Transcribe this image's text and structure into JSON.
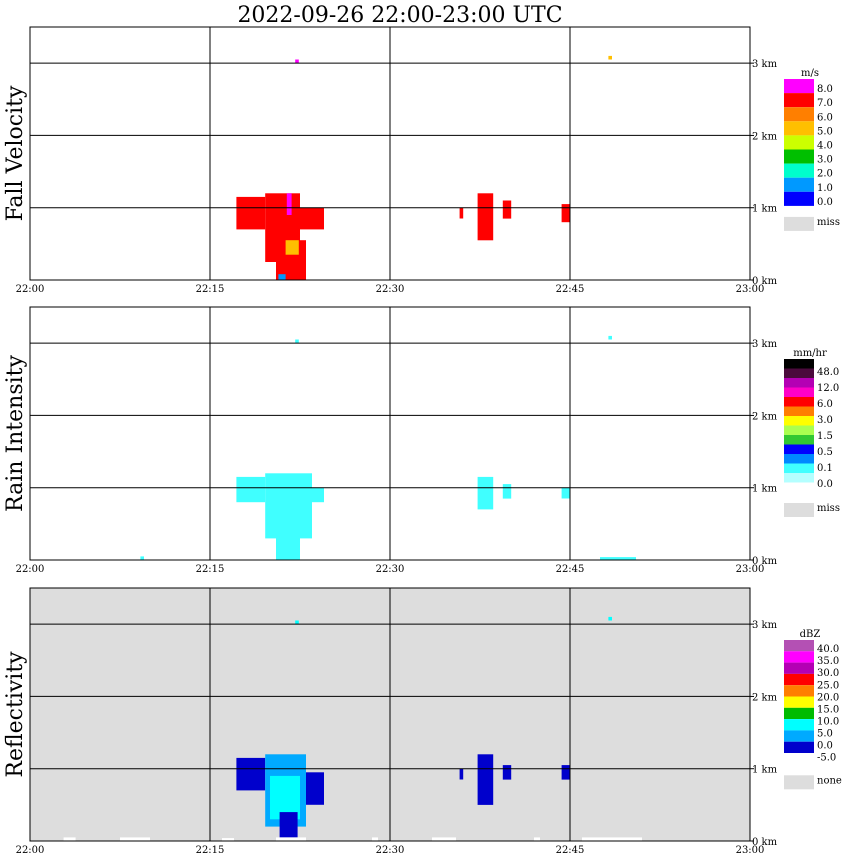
{
  "title": "2022-09-26   22:00-23:00 UTC",
  "chart_data": [
    {
      "type": "heatmap",
      "ylabel": "Fall Velocity",
      "unit": "m/s",
      "x_ticks": [
        "22:00",
        "22:15",
        "22:30",
        "22:45",
        "23:00"
      ],
      "y_ticks": [
        "0 km",
        "1 km",
        "2 km",
        "3 km"
      ],
      "xlim": [
        0,
        60
      ],
      "ylim": [
        0,
        3.5
      ],
      "grid": true,
      "background": "white",
      "colorbar": {
        "labels": [
          "8.0",
          "7.0",
          "6.0",
          "5.0",
          "4.0",
          "3.0",
          "2.0",
          "1.0",
          "0.0"
        ],
        "colors": [
          "#ff00ff",
          "#ff0000",
          "#ff7f00",
          "#ffbf00",
          "#ccff00",
          "#00bf00",
          "#00ffcc",
          "#0099ff",
          "#0000ff"
        ],
        "missing_label": "miss",
        "missing_color": "#dddddd"
      },
      "echoes": [
        {
          "t": [
            17.2,
            19.6
          ],
          "z": [
            0.7,
            1.15
          ],
          "level": 1
        },
        {
          "t": [
            19.6,
            22.5
          ],
          "z": [
            0.25,
            1.2
          ],
          "level": 1
        },
        {
          "t": [
            20.5,
            23.0
          ],
          "z": [
            0.0,
            0.55
          ],
          "level": 1
        },
        {
          "t": [
            21.3,
            22.4
          ],
          "z": [
            0.35,
            0.55
          ],
          "level": 3
        },
        {
          "t": [
            20.7,
            21.3
          ],
          "z": [
            0.0,
            0.08
          ],
          "level": 7
        },
        {
          "t": [
            21.4,
            21.8
          ],
          "z": [
            0.9,
            1.2
          ],
          "level": 0
        },
        {
          "t": [
            22.5,
            24.5
          ],
          "z": [
            0.7,
            1.0
          ],
          "level": 1
        },
        {
          "t": [
            35.8,
            36.1
          ],
          "z": [
            0.85,
            1.0
          ],
          "level": 1
        },
        {
          "t": [
            37.3,
            38.6
          ],
          "z": [
            0.55,
            1.2
          ],
          "level": 1
        },
        {
          "t": [
            39.4,
            40.1
          ],
          "z": [
            0.85,
            1.1
          ],
          "level": 1
        },
        {
          "t": [
            44.3,
            45.0
          ],
          "z": [
            0.8,
            1.05
          ],
          "level": 1
        },
        {
          "t": [
            22.1,
            22.4
          ],
          "z": [
            3.0,
            3.05
          ],
          "level": 0
        },
        {
          "t": [
            48.2,
            48.5
          ],
          "z": [
            3.05,
            3.1
          ],
          "level": 3
        }
      ]
    },
    {
      "type": "heatmap",
      "ylabel": "Rain Intensity",
      "unit": "mm/hr",
      "x_ticks": [
        "22:00",
        "22:15",
        "22:30",
        "22:45",
        "23:00"
      ],
      "y_ticks": [
        "0 km",
        "1 km",
        "2 km",
        "3 km"
      ],
      "xlim": [
        0,
        60
      ],
      "ylim": [
        0,
        3.5
      ],
      "grid": true,
      "background": "white",
      "colorbar": {
        "labels": [
          "48.0",
          "12.0",
          "6.0",
          "3.0",
          "1.5",
          "0.5",
          "0.1",
          "0.0"
        ],
        "colors": [
          "#000000",
          "#4b0a3c",
          "#b400b4",
          "#ff00c8",
          "#ff0000",
          "#ff7f00",
          "#ffff00",
          "#aaff50",
          "#32c832",
          "#0000ff",
          "#0088ff",
          "#40ffff",
          "#b4ffff",
          "#ffffff"
        ],
        "missing_label": "miss",
        "missing_color": "#dddddd"
      },
      "echoes": [
        {
          "t": [
            17.2,
            19.6
          ],
          "z": [
            0.8,
            1.15
          ],
          "level": 11
        },
        {
          "t": [
            19.6,
            23.5
          ],
          "z": [
            0.3,
            1.2
          ],
          "level": 11
        },
        {
          "t": [
            20.5,
            22.5
          ],
          "z": [
            0.0,
            0.5
          ],
          "level": 11
        },
        {
          "t": [
            23.5,
            24.5
          ],
          "z": [
            0.8,
            1.0
          ],
          "level": 11
        },
        {
          "t": [
            37.3,
            38.6
          ],
          "z": [
            0.7,
            1.15
          ],
          "level": 11
        },
        {
          "t": [
            39.4,
            40.1
          ],
          "z": [
            0.85,
            1.05
          ],
          "level": 11
        },
        {
          "t": [
            44.3,
            45.0
          ],
          "z": [
            0.85,
            1.0
          ],
          "level": 11
        },
        {
          "t": [
            9.2,
            9.5
          ],
          "z": [
            0.0,
            0.05
          ],
          "level": 11
        },
        {
          "t": [
            47.5,
            50.5
          ],
          "z": [
            0.0,
            0.04
          ],
          "level": 11
        },
        {
          "t": [
            22.1,
            22.4
          ],
          "z": [
            3.0,
            3.05
          ],
          "level": 11
        },
        {
          "t": [
            48.2,
            48.5
          ],
          "z": [
            3.05,
            3.1
          ],
          "level": 11
        }
      ]
    },
    {
      "type": "heatmap",
      "ylabel": "Reflectivity",
      "unit": "dBZ",
      "x_ticks": [
        "22:00",
        "22:15",
        "22:30",
        "22:45",
        "23:00"
      ],
      "y_ticks": [
        "0 km",
        "1 km",
        "2 km",
        "3 km"
      ],
      "xlim": [
        0,
        60
      ],
      "ylim": [
        0,
        3.5
      ],
      "grid": true,
      "background": "missing",
      "colorbar": {
        "labels": [
          "40.0",
          "35.0",
          "30.0",
          "25.0",
          "20.0",
          "15.0",
          "10.0",
          "5.0",
          "0.0",
          "-5.0"
        ],
        "colors": [
          "#b450b4",
          "#ff00ff",
          "#b400b4",
          "#ff0000",
          "#ff7f00",
          "#ffff00",
          "#00bb00",
          "#00ffff",
          "#00aaff",
          "#0000cc",
          "#ffffff"
        ],
        "missing_label": "none",
        "missing_color": "#dddddd"
      },
      "echoes": [
        {
          "t": [
            17.2,
            19.6
          ],
          "z": [
            0.7,
            1.15
          ],
          "level": 9
        },
        {
          "t": [
            19.6,
            23.0
          ],
          "z": [
            0.2,
            1.2
          ],
          "level": 8
        },
        {
          "t": [
            20.0,
            22.5
          ],
          "z": [
            0.3,
            0.9
          ],
          "level": 7
        },
        {
          "t": [
            20.8,
            22.3
          ],
          "z": [
            0.05,
            0.4
          ],
          "level": 9
        },
        {
          "t": [
            23.0,
            24.5
          ],
          "z": [
            0.5,
            0.95
          ],
          "level": 9
        },
        {
          "t": [
            35.8,
            36.1
          ],
          "z": [
            0.85,
            1.0
          ],
          "level": 9
        },
        {
          "t": [
            37.3,
            38.6
          ],
          "z": [
            0.5,
            1.2
          ],
          "level": 9
        },
        {
          "t": [
            39.4,
            40.1
          ],
          "z": [
            0.85,
            1.05
          ],
          "level": 9
        },
        {
          "t": [
            44.3,
            45.0
          ],
          "z": [
            0.85,
            1.05
          ],
          "level": 9
        },
        {
          "t": [
            22.1,
            22.4
          ],
          "z": [
            3.0,
            3.05
          ],
          "level": 7
        },
        {
          "t": [
            48.2,
            48.5
          ],
          "z": [
            3.05,
            3.1
          ],
          "level": 7
        },
        {
          "t": [
            2.8,
            3.8
          ],
          "z": [
            0.0,
            0.05
          ],
          "level": 10
        },
        {
          "t": [
            7.5,
            10.0
          ],
          "z": [
            0.0,
            0.05
          ],
          "level": 10
        },
        {
          "t": [
            16.0,
            17.0
          ],
          "z": [
            0.0,
            0.04
          ],
          "level": 10
        },
        {
          "t": [
            20.5,
            23.0
          ],
          "z": [
            0.0,
            0.05
          ],
          "level": 10
        },
        {
          "t": [
            28.5,
            29.0
          ],
          "z": [
            0.0,
            0.05
          ],
          "level": 10
        },
        {
          "t": [
            33.5,
            35.5
          ],
          "z": [
            0.0,
            0.05
          ],
          "level": 10
        },
        {
          "t": [
            42.0,
            42.5
          ],
          "z": [
            0.0,
            0.05
          ],
          "level": 10
        },
        {
          "t": [
            46.0,
            51.0
          ],
          "z": [
            0.0,
            0.05
          ],
          "level": 10
        }
      ]
    }
  ]
}
